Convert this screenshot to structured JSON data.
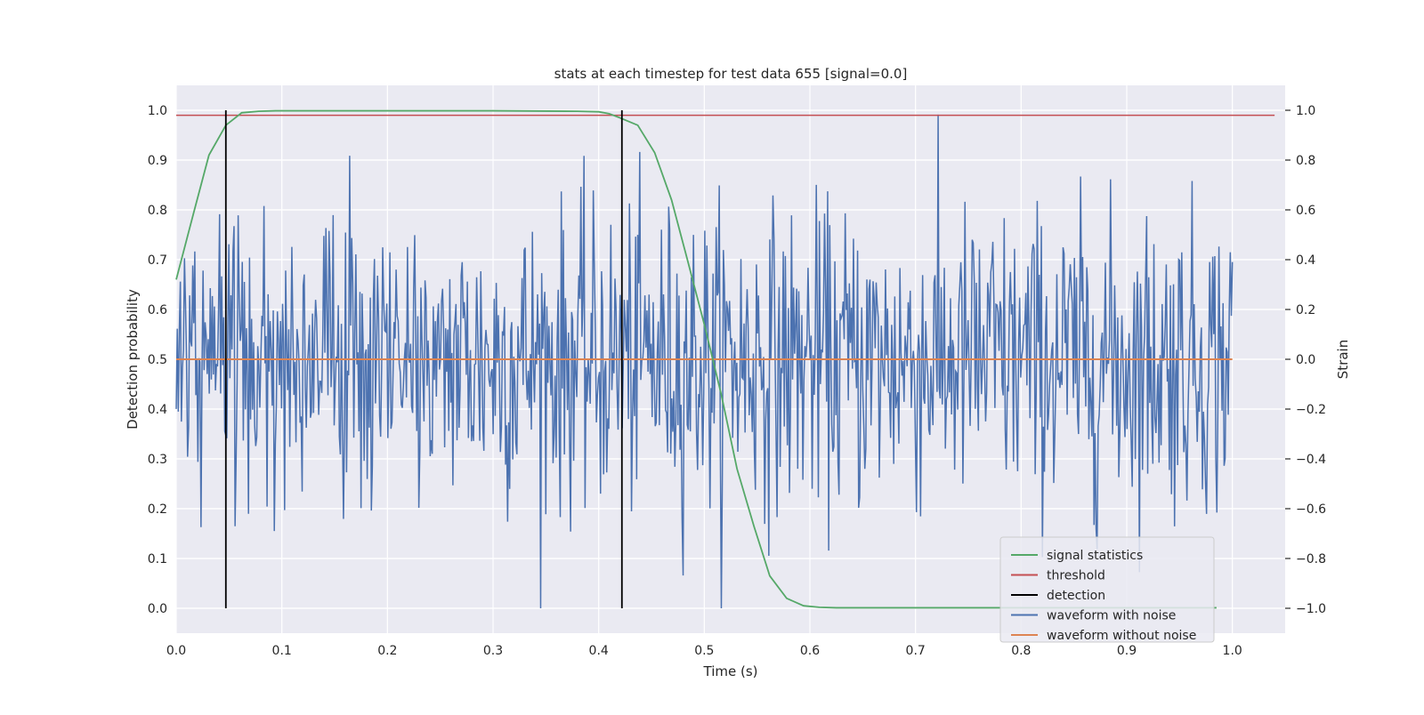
{
  "chart_data": {
    "type": "line",
    "title": "stats at each timestep for test data 655 [signal=0.0]",
    "xlabel": "Time (s)",
    "ylabel_left": "Detection probability",
    "ylabel_right": "Strain",
    "xlim": [
      0.0,
      1.05
    ],
    "ylim_left": [
      -0.05,
      1.05
    ],
    "ylim_right": [
      -1.1,
      1.1
    ],
    "x_ticks": [
      "0.0",
      "0.1",
      "0.2",
      "0.3",
      "0.4",
      "0.5",
      "0.6",
      "0.7",
      "0.8",
      "0.9",
      "1.0"
    ],
    "y_left_ticks": [
      "0.0",
      "0.1",
      "0.2",
      "0.3",
      "0.4",
      "0.5",
      "0.6",
      "0.7",
      "0.8",
      "0.9",
      "1.0"
    ],
    "y_right_ticks": [
      "−1.0",
      "−0.8",
      "−0.6",
      "−0.4",
      "−0.2",
      "0.0",
      "0.2",
      "0.4",
      "0.6",
      "0.8",
      "1.0"
    ],
    "grid": true,
    "legend_position": "lower-right",
    "colors": {
      "plot_bg": "#eaeaf2",
      "grid": "#ffffff",
      "signal_statistics": "#55a868",
      "threshold": "#c44e52",
      "detection": "#000000",
      "waveform_with_noise": "#4c72b0",
      "waveform_without_noise": "#dd8452"
    },
    "series": [
      {
        "name": "signal statistics",
        "axis": "left",
        "x": [
          0.0,
          0.016,
          0.031,
          0.047,
          0.062,
          0.078,
          0.094,
          0.109,
          0.125,
          0.2,
          0.3,
          0.38,
          0.4,
          0.41,
          0.42,
          0.437,
          0.453,
          0.469,
          0.484,
          0.5,
          0.516,
          0.531,
          0.547,
          0.562,
          0.578,
          0.594,
          0.609,
          0.625,
          0.7,
          0.8,
          0.9,
          0.985
        ],
        "values": [
          0.66,
          0.79,
          0.91,
          0.97,
          0.995,
          0.998,
          0.999,
          0.999,
          0.999,
          0.999,
          0.999,
          0.998,
          0.997,
          0.993,
          0.985,
          0.97,
          0.915,
          0.82,
          0.7,
          0.57,
          0.43,
          0.28,
          0.165,
          0.065,
          0.02,
          0.005,
          0.002,
          0.001,
          0.001,
          0.001,
          0.001,
          0.001
        ]
      },
      {
        "name": "threshold",
        "axis": "left",
        "x": [
          0.0,
          1.04
        ],
        "values": [
          0.99,
          0.99
        ]
      },
      {
        "name": "detection",
        "axis": "left",
        "x_positions": [
          0.047,
          0.422
        ],
        "range": [
          0.0,
          1.0
        ]
      },
      {
        "name": "waveform with noise",
        "axis": "right",
        "x_range": [
          0.0,
          1.0
        ],
        "samples": 1024,
        "std": 0.3,
        "min": -1.0,
        "max": 1.0
      },
      {
        "name": "waveform without noise",
        "axis": "right",
        "x": [
          0.0,
          1.0
        ],
        "values": [
          0.0,
          0.0
        ]
      }
    ],
    "legend": [
      "signal statistics",
      "threshold",
      "detection",
      "waveform with noise",
      "waveform without noise"
    ]
  }
}
